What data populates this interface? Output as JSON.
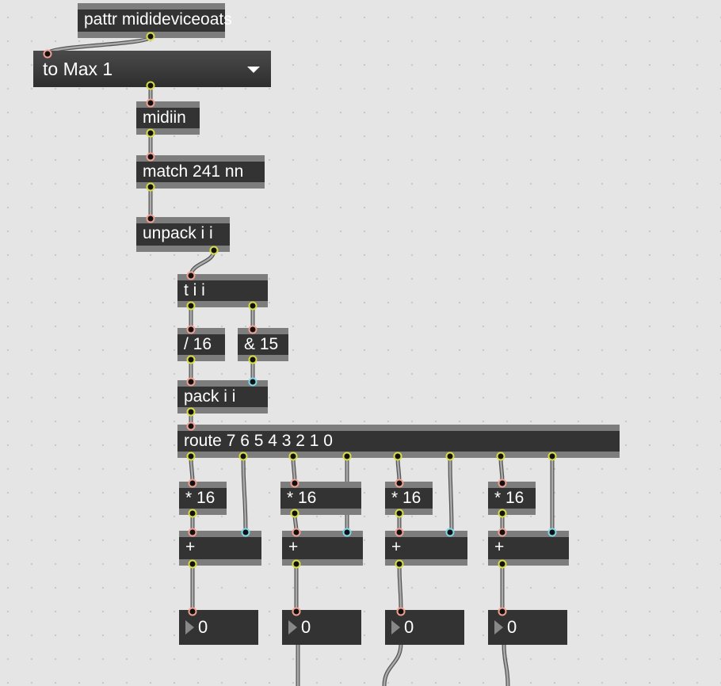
{
  "patcher": {
    "pattr": "pattr midideviceoats",
    "menu": "to Max 1",
    "midiin": "midiin",
    "match": "match 241 nn",
    "unpack": "unpack i i",
    "trigger": "t i i",
    "divide": "/ 16",
    "and": "& 15",
    "pack": "pack i i",
    "route": "route 7 6 5 4 3 2 1 0",
    "mult": [
      "* 16",
      "* 16",
      "* 16",
      "* 16"
    ],
    "plus": [
      "+",
      "+",
      "+",
      "+"
    ],
    "numbers": [
      "0",
      "0",
      "0",
      "0"
    ]
  },
  "colors": {
    "inlet": "#f0a090",
    "outlet": "#d8dc40",
    "cold_inlet": "#7fd8e8",
    "object_bg": "#333333",
    "object_bar": "#7d7d7d",
    "canvas": "#e5e5e5"
  }
}
